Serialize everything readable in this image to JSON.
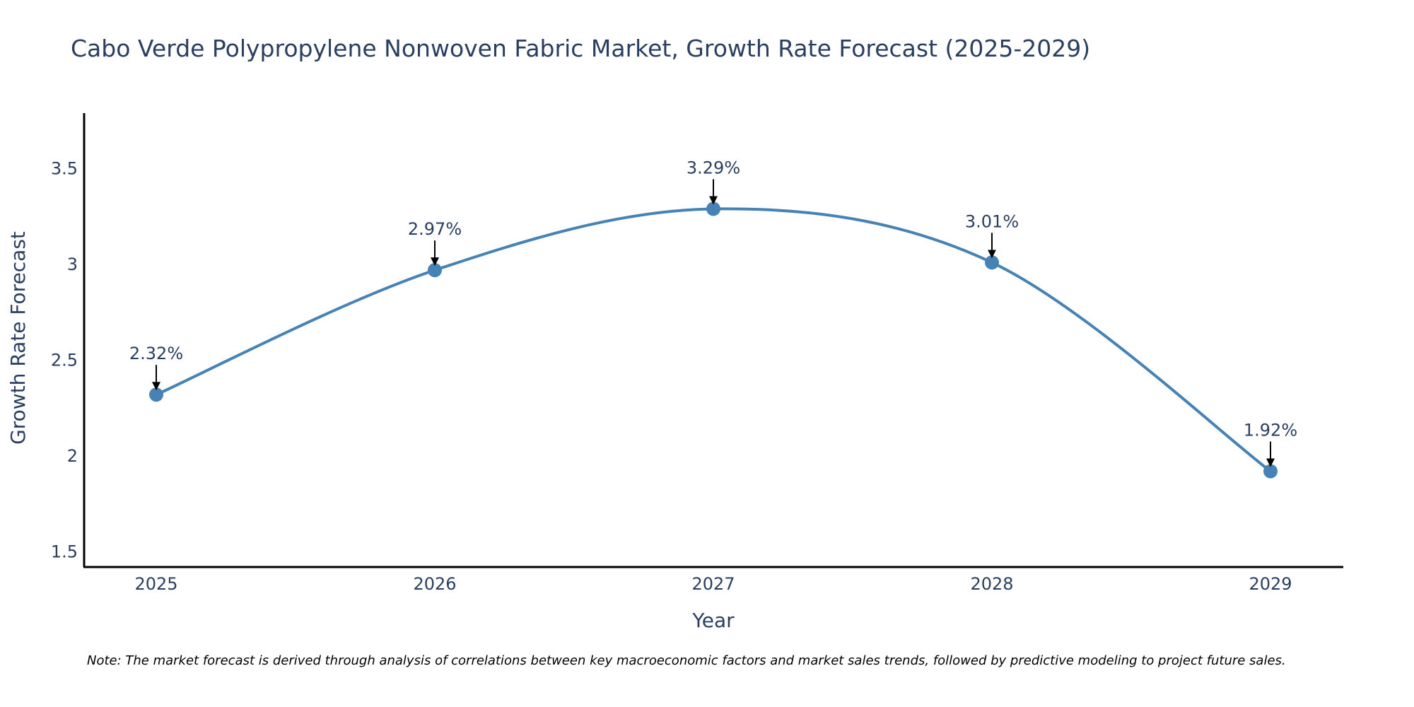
{
  "chart_data": {
    "type": "line",
    "title": "Cabo Verde Polypropylene Nonwoven Fabric Market, Growth Rate Forecast (2025-2029)",
    "xlabel": "Year",
    "ylabel": "Growth Rate Forecast",
    "categories": [
      "2025",
      "2026",
      "2027",
      "2028",
      "2029"
    ],
    "values": [
      2.32,
      2.97,
      3.29,
      3.01,
      1.92
    ],
    "data_labels": [
      "2.32%",
      "2.97%",
      "3.29%",
      "3.01%",
      "1.92%"
    ],
    "y_ticks": [
      1.5,
      2,
      2.5,
      3,
      3.5
    ],
    "y_tick_labels": [
      "1.5",
      "2",
      "2.5",
      "3",
      "3.5"
    ],
    "ylim": [
      1.42,
      3.79
    ],
    "line_shape": "spline",
    "grid": false,
    "series_color": "#4682b4",
    "arrow_color": "#000000"
  },
  "note": "Note: The market forecast is derived through analysis of correlations between key macroeconomic factors and market sales trends, followed by predictive modeling to project future sales."
}
